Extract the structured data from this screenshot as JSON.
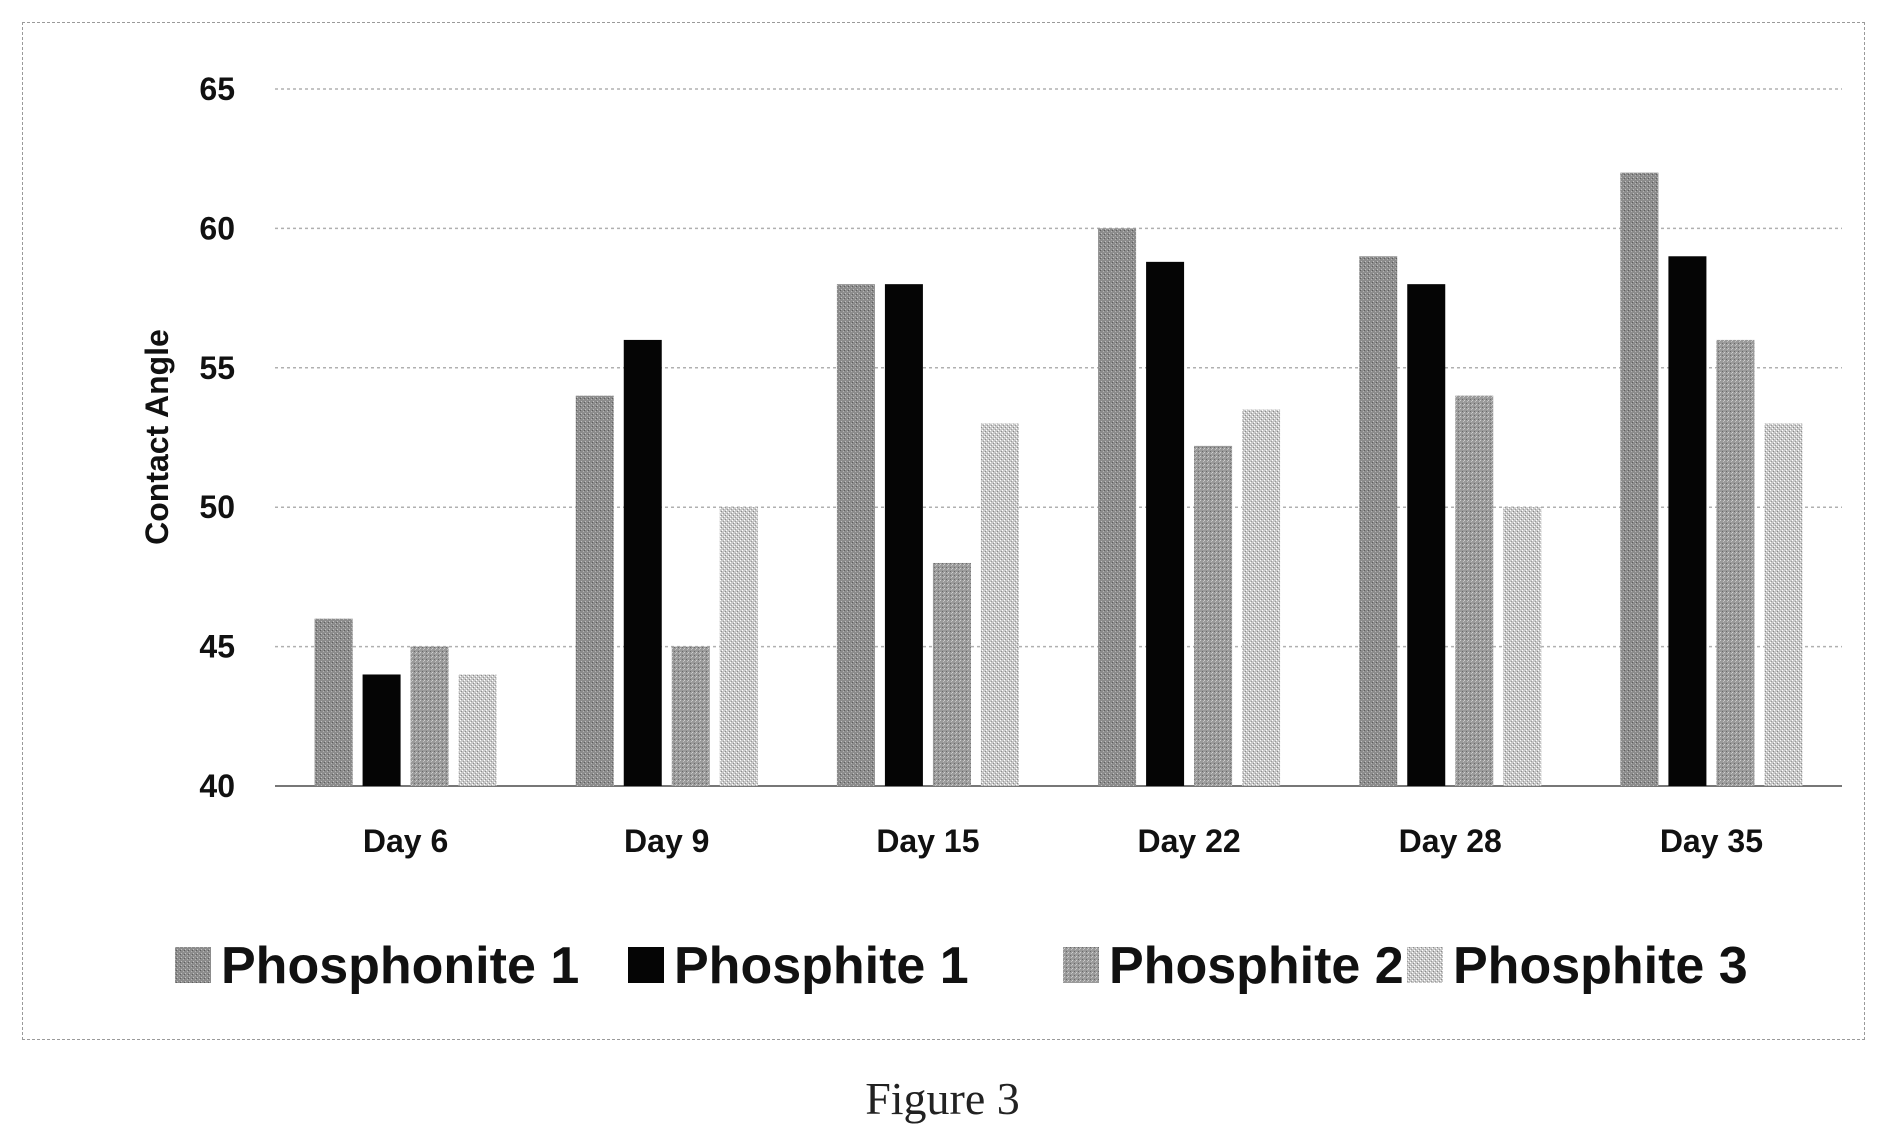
{
  "chart_data": {
    "type": "bar",
    "categories": [
      "Day 6",
      "Day 9",
      "Day 15",
      "Day 22",
      "Day 28",
      "Day 35"
    ],
    "series": [
      {
        "name": "Phosphonite 1",
        "values": [
          46,
          54,
          58,
          60,
          59,
          62
        ],
        "color": "#8c8c8c"
      },
      {
        "name": "Phosphite 1",
        "values": [
          44,
          56,
          58,
          58.8,
          58,
          59
        ],
        "color": "#050505"
      },
      {
        "name": "Phosphite 2",
        "values": [
          45,
          45,
          48,
          52.2,
          54,
          56
        ],
        "color": "#9a9a9a"
      },
      {
        "name": "Phosphite 3",
        "values": [
          44,
          50,
          53,
          53.5,
          50,
          53
        ],
        "color": "#c8c8c8"
      }
    ],
    "ylabel": "Contact Angle",
    "ylim": [
      40,
      65
    ],
    "yticks": [
      40,
      45,
      50,
      55,
      60,
      65
    ],
    "grid": true,
    "legend_position": "bottom"
  },
  "caption": "Figure 3"
}
